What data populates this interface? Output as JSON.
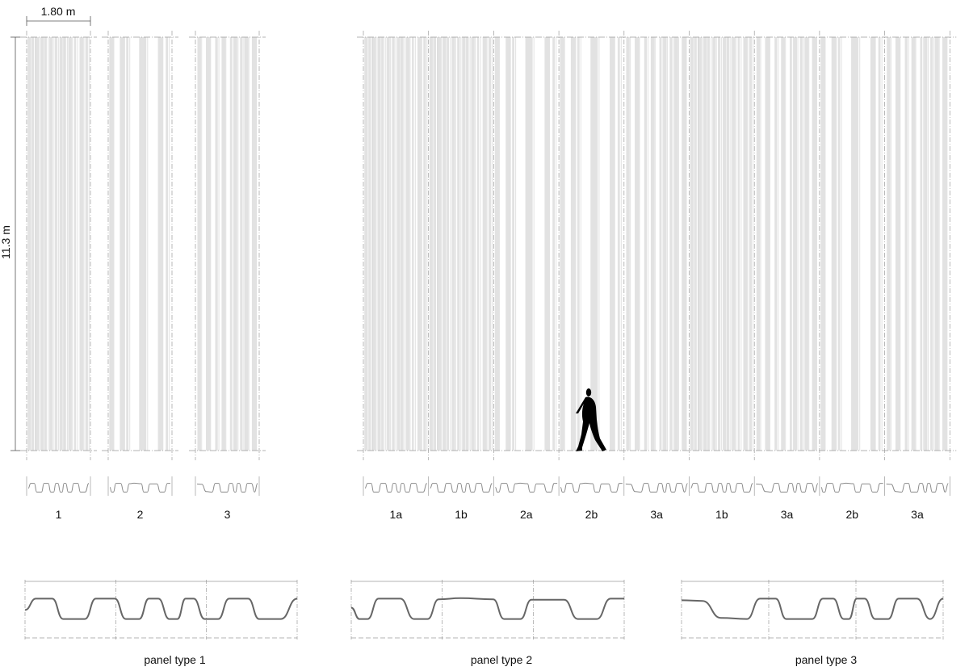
{
  "dimensions": {
    "width_label": "1.80 m",
    "height_label": "11.3 m"
  },
  "single_panels": [
    {
      "label": "1",
      "type": 1
    },
    {
      "label": "2",
      "type": 2
    },
    {
      "label": "3",
      "type": 3
    }
  ],
  "facade_panels": [
    {
      "label": "1a",
      "type": 1
    },
    {
      "label": "1b",
      "type": 1
    },
    {
      "label": "2a",
      "type": 2
    },
    {
      "label": "2b",
      "type": 2
    },
    {
      "label": "3a",
      "type": 3
    },
    {
      "label": "1b",
      "type": 1
    },
    {
      "label": "3a",
      "type": 3
    },
    {
      "label": "2b",
      "type": 2
    },
    {
      "label": "3a",
      "type": 3
    }
  ],
  "panel_profiles": [
    {
      "caption": "panel type 1",
      "type": 1
    },
    {
      "caption": "panel type 2",
      "type": 2
    },
    {
      "caption": "panel type 3",
      "type": 3
    }
  ],
  "figure": {
    "icon": "walking-person-icon"
  },
  "colors": {
    "line": "#8a8a8a",
    "profile": "#666666",
    "guide": "#9a9a9a",
    "stripe": "#cfcfcf",
    "figure": "#000000"
  }
}
